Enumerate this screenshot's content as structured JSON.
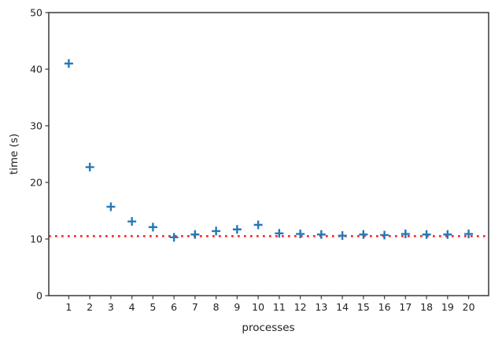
{
  "chart_data": {
    "type": "scatter",
    "title": "",
    "xlabel": "processes",
    "ylabel": "time (s)",
    "marker": "plus",
    "marker_color": "#2878b5",
    "x": [
      1,
      2,
      3,
      4,
      5,
      6,
      7,
      8,
      9,
      10,
      11,
      12,
      13,
      14,
      15,
      16,
      17,
      18,
      19,
      20
    ],
    "y": [
      41.0,
      22.7,
      15.7,
      13.1,
      12.1,
      10.3,
      10.8,
      11.4,
      11.7,
      12.5,
      11.0,
      10.9,
      10.8,
      10.6,
      10.8,
      10.7,
      10.9,
      10.8,
      10.8,
      10.9
    ],
    "xticks": [
      1,
      2,
      3,
      4,
      5,
      6,
      7,
      8,
      9,
      10,
      11,
      12,
      13,
      14,
      15,
      16,
      17,
      18,
      19,
      20
    ],
    "yticks": [
      0,
      10,
      20,
      30,
      40,
      50
    ],
    "xlim": [
      0.05,
      20.95
    ],
    "ylim": [
      0,
      50
    ],
    "grid": false,
    "legend": null,
    "reference_line": {
      "y": 10.5,
      "style": "dotted",
      "color": "#ff2b2b"
    },
    "axis_color": "#444444",
    "text_color": "#1f1f1f"
  }
}
